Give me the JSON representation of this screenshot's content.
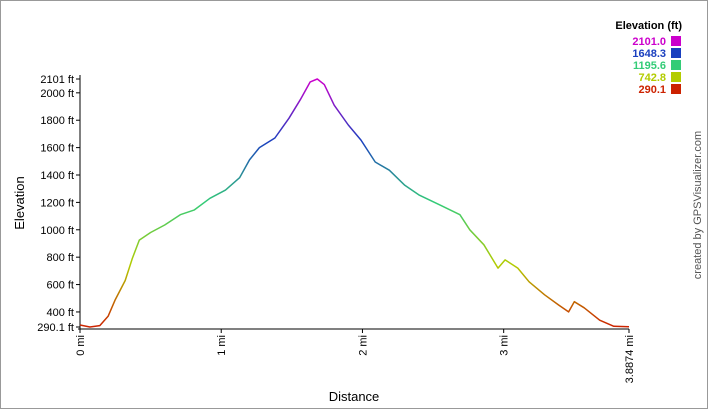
{
  "chart_data": {
    "type": "line",
    "x_label": "Distance",
    "y_label": "Elevation",
    "credit": "created by GPSVisualizer.com",
    "xlim": [
      0,
      3.8874
    ],
    "ylim": [
      290.1,
      2101
    ],
    "xticks": [
      {
        "value": 0,
        "label": "0 mi"
      },
      {
        "value": 1,
        "label": "1 mi"
      },
      {
        "value": 2,
        "label": "2 mi"
      },
      {
        "value": 3,
        "label": "3 mi"
      },
      {
        "value": 3.8874,
        "label": "3.8874 mi"
      }
    ],
    "yticks": [
      {
        "value": 290.1,
        "label": "290.1 ft"
      },
      {
        "value": 400,
        "label": "400 ft"
      },
      {
        "value": 600,
        "label": "600 ft"
      },
      {
        "value": 800,
        "label": "800 ft"
      },
      {
        "value": 1000,
        "label": "1000 ft"
      },
      {
        "value": 1200,
        "label": "1200 ft"
      },
      {
        "value": 1400,
        "label": "1400 ft"
      },
      {
        "value": 1600,
        "label": "1600 ft"
      },
      {
        "value": 1800,
        "label": "1800 ft"
      },
      {
        "value": 2000,
        "label": "2000 ft"
      },
      {
        "value": 2101,
        "label": "2101 ft"
      }
    ],
    "x": [
      0,
      0.07,
      0.14,
      0.2,
      0.25,
      0.32,
      0.37,
      0.42,
      0.5,
      0.6,
      0.71,
      0.81,
      0.92,
      1.03,
      1.13,
      1.2,
      1.27,
      1.38,
      1.48,
      1.56,
      1.63,
      1.68,
      1.73,
      1.8,
      1.9,
      1.99,
      2.09,
      2.19,
      2.3,
      2.4,
      2.55,
      2.69,
      2.76,
      2.86,
      2.96,
      3.01,
      3.1,
      3.18,
      3.29,
      3.39,
      3.46,
      3.5,
      3.57,
      3.68,
      3.78,
      3.8874
    ],
    "values": [
      305,
      290.1,
      300,
      370,
      490,
      630,
      790,
      925,
      980,
      1035,
      1110,
      1145,
      1230,
      1290,
      1380,
      1510,
      1600,
      1670,
      1815,
      1950,
      2080,
      2101,
      2060,
      1910,
      1765,
      1655,
      1495,
      1435,
      1325,
      1255,
      1180,
      1110,
      1000,
      890,
      720,
      780,
      720,
      620,
      525,
      450,
      400,
      475,
      430,
      340,
      295,
      292
    ],
    "legend": {
      "title": "Elevation (ft)",
      "values": [
        2101,
        1648.3,
        1195.6,
        742.8,
        290.1
      ],
      "value_labels": [
        "2101.0",
        "1648.3",
        "1195.6",
        "742.8",
        "290.1"
      ],
      "colors": [
        "#cc00cc",
        "#1a3fbf",
        "#33cc77",
        "#b3cc00",
        "#cc2200"
      ]
    }
  }
}
